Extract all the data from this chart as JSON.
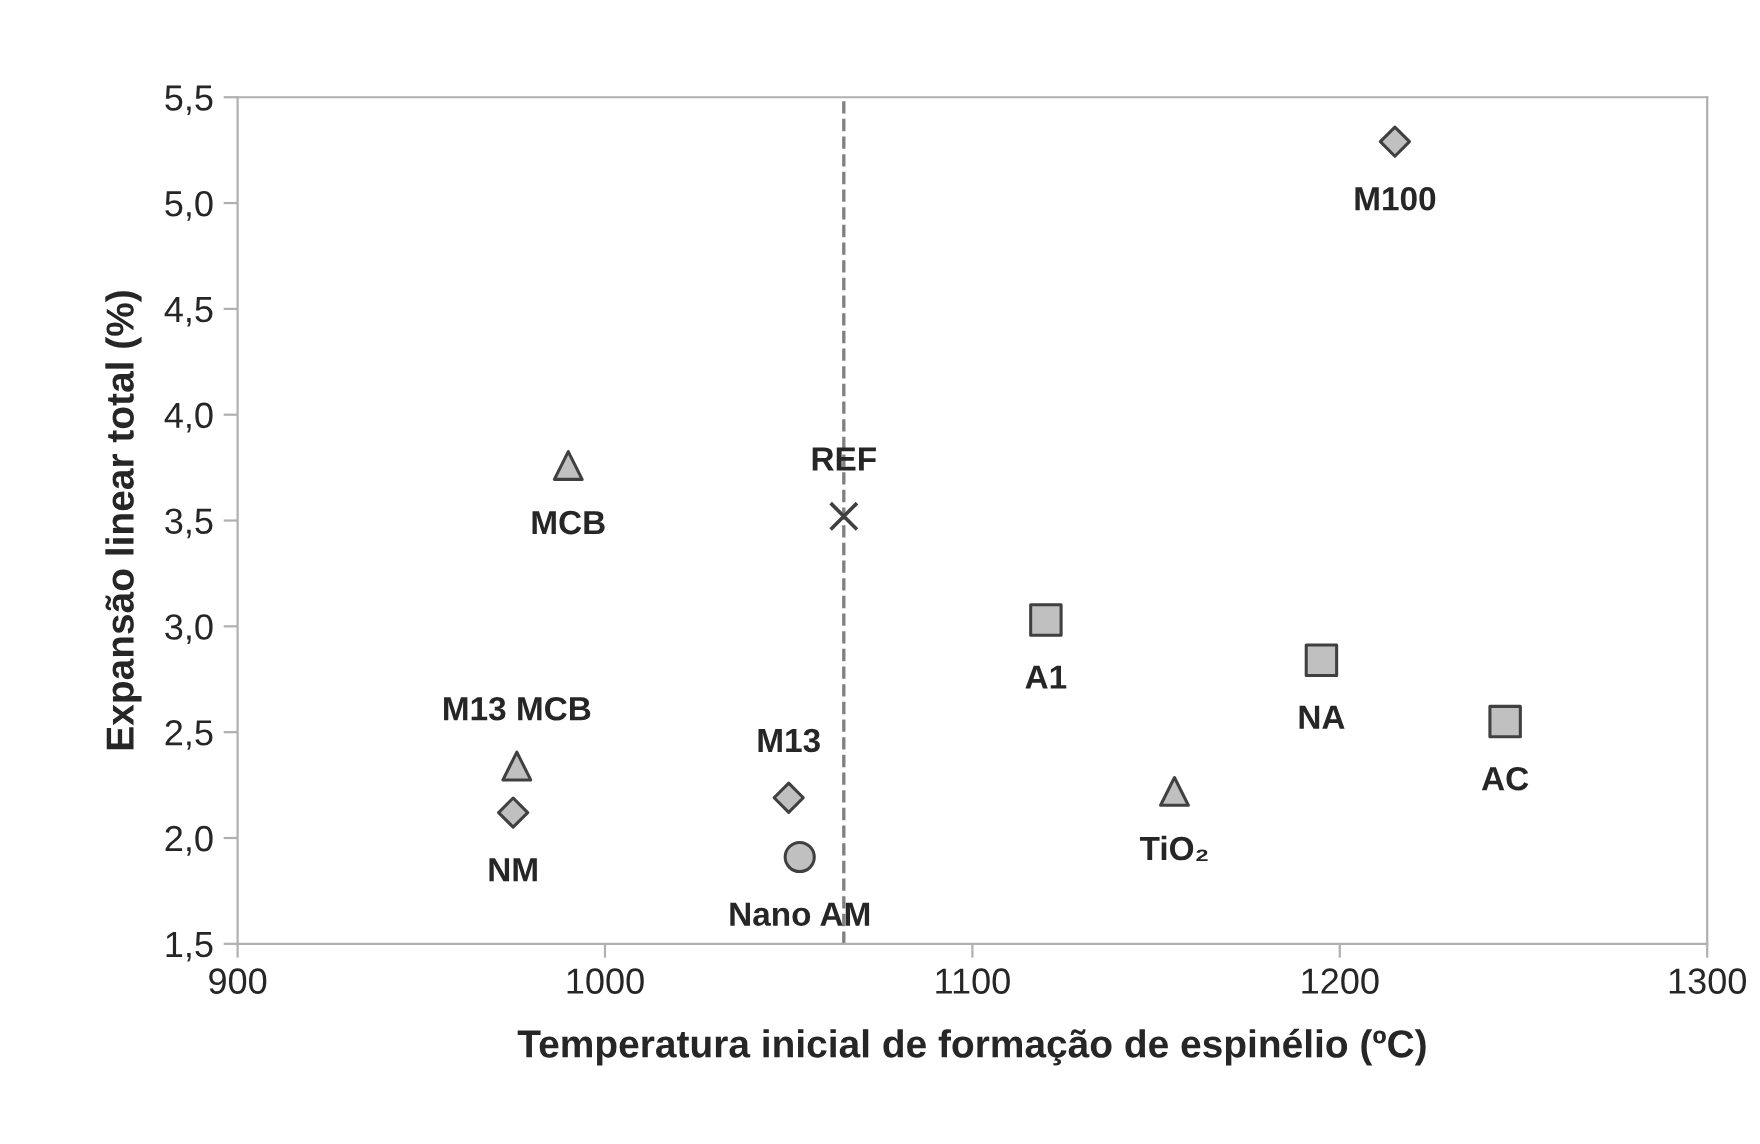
{
  "chart_data": {
    "type": "scatter",
    "xlabel": "Temperatura inicial de formação de espinélio (ºC)",
    "ylabel": "Expansão linear total (%)",
    "xlim": [
      900,
      1300
    ],
    "xticks": [
      900,
      1000,
      1100,
      1200,
      1300
    ],
    "ylim": [
      1.5,
      5.5
    ],
    "yticks": [
      {
        "value": 1.5,
        "label": "1,5"
      },
      {
        "value": 2.0,
        "label": "2,0"
      },
      {
        "value": 2.5,
        "label": "2,5"
      },
      {
        "value": 3.0,
        "label": "3,0"
      },
      {
        "value": 3.5,
        "label": "3,5"
      },
      {
        "value": 4.0,
        "label": "4,0"
      },
      {
        "value": 4.5,
        "label": "4,5"
      },
      {
        "value": 5.0,
        "label": "5,0"
      },
      {
        "value": 5.5,
        "label": "5,5"
      }
    ],
    "grid": false,
    "legend": false,
    "ref_lines": [
      {
        "axis": "x",
        "value": 1065,
        "color": "#808080",
        "line_style": "dashed"
      }
    ],
    "series": [
      {
        "name": "M100",
        "marker": "diamond",
        "color": "#c0c0c0",
        "x": [
          1215
        ],
        "values": [
          5.29
        ]
      },
      {
        "name": "MCB",
        "marker": "triangle",
        "color": "#c0c0c0",
        "x": [
          990
        ],
        "values": [
          3.76
        ]
      },
      {
        "name": "REF",
        "marker": "cross",
        "color": "#404040",
        "x": [
          1065
        ],
        "values": [
          3.52
        ]
      },
      {
        "name": "A1",
        "marker": "square",
        "color": "#c0c0c0",
        "x": [
          1120
        ],
        "values": [
          3.03
        ]
      },
      {
        "name": "NA",
        "marker": "square",
        "color": "#c0c0c0",
        "x": [
          1195
        ],
        "values": [
          2.84
        ]
      },
      {
        "name": "AC",
        "marker": "square",
        "color": "#c0c0c0",
        "x": [
          1245
        ],
        "values": [
          2.55
        ]
      },
      {
        "name": "TiO₂",
        "marker": "triangle",
        "color": "#c0c0c0",
        "x": [
          1155
        ],
        "values": [
          2.22
        ]
      },
      {
        "name": "M13 MCB",
        "marker": "triangle",
        "color": "#c0c0c0",
        "x": [
          976
        ],
        "values": [
          2.34
        ]
      },
      {
        "name": "NM",
        "marker": "diamond",
        "color": "#c0c0c0",
        "x": [
          975
        ],
        "values": [
          2.12
        ]
      },
      {
        "name": "M13",
        "marker": "diamond",
        "color": "#c0c0c0",
        "x": [
          1050
        ],
        "values": [
          2.19
        ]
      },
      {
        "name": "Nano AM",
        "marker": "circle",
        "color": "#c0c0c0",
        "x": [
          1053
        ],
        "values": [
          1.91
        ]
      }
    ]
  }
}
